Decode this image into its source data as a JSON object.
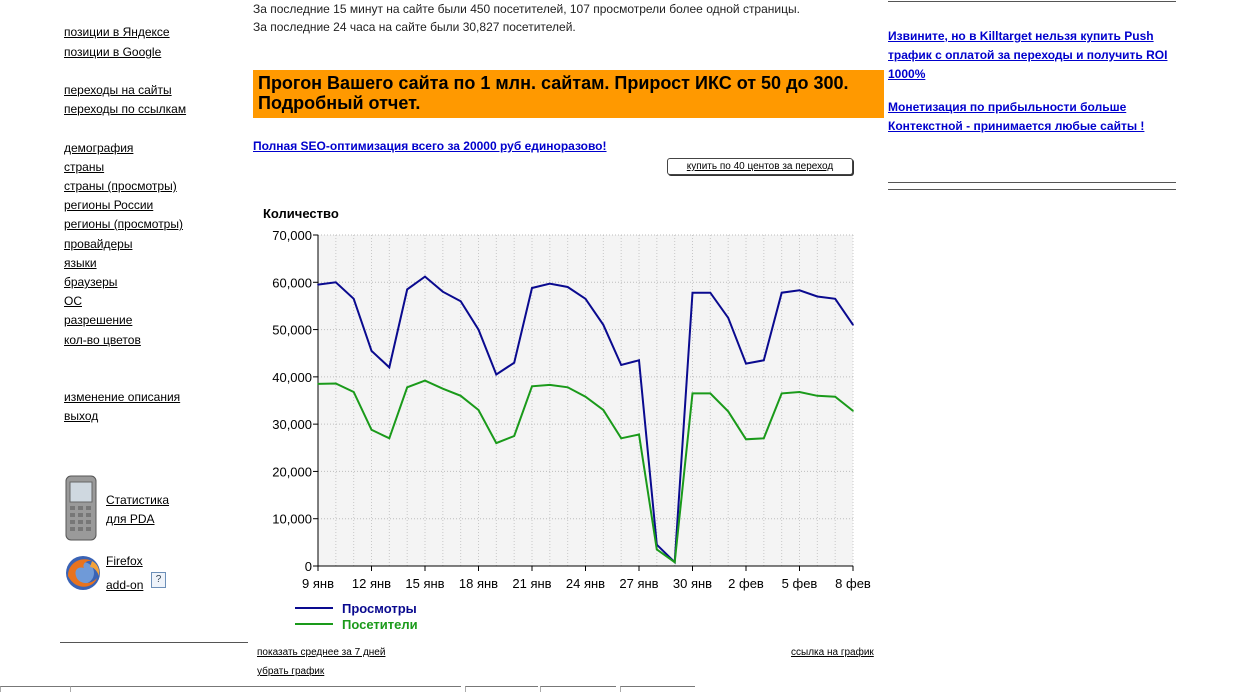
{
  "sidebar": {
    "links": [
      {
        "label": "позиции в Яндексе",
        "top": 25
      },
      {
        "label": "позиции в Google",
        "top": 45
      },
      {
        "label": "переходы на сайты",
        "top": 83
      },
      {
        "label": "переходы по ссылкам",
        "top": 102
      },
      {
        "label": "демография",
        "top": 141
      },
      {
        "label": "страны",
        "top": 160
      },
      {
        "label": "страны (просмотры)",
        "top": 179
      },
      {
        "label": "регионы России",
        "top": 198
      },
      {
        "label": "регионы (просмотры)",
        "top": 217
      },
      {
        "label": "провайдеры",
        "top": 237
      },
      {
        "label": "языки",
        "top": 256
      },
      {
        "label": "браузеры",
        "top": 275
      },
      {
        "label": "ОС",
        "top": 294
      },
      {
        "label": "разрешение",
        "top": 313
      },
      {
        "label": "кол-во цветов",
        "top": 333
      },
      {
        "label": "изменение описания",
        "top": 390
      },
      {
        "label": "выход",
        "top": 409
      }
    ],
    "pda": {
      "line1": "Статистика",
      "line2": "для PDA"
    },
    "firefox": {
      "line1": "Firefox",
      "line2": "add-on",
      "help": "?"
    }
  },
  "main": {
    "stat_15min": "За последние 15 минут на сайте были 450 посетителей, 107 просмотрели более одной страницы.",
    "stat_24h": "За последние 24 часа на сайте были 30,827 посетителей.",
    "banner": "Прогон Вашего сайта по 1 млн. сайтам. Прирост ИКС от 50 до 300. Подробный отчет.",
    "seo_link": "Полная SEO-оптимизация всего за 20000 руб единоразово!",
    "buy_button": "купить по 40 центов за переход",
    "show_avg": "показать среднее за 7 дней",
    "remove_chart": "убрать график",
    "chart_link": "ссылка на график"
  },
  "right": {
    "link1": "Извините, но в Killtarget нельзя купить Push трафик с оплатой за переходы и получить ROI 1000%",
    "link2": "Монетизация по прибыльности больше Контекстной - принимается любые сайты !"
  },
  "chart_data": {
    "type": "line",
    "ylabel": "Количество",
    "ylim": [
      0,
      70000
    ],
    "yticks": [
      "0",
      "10,000",
      "20,000",
      "30,000",
      "40,000",
      "50,000",
      "60,000",
      "70,000"
    ],
    "xticks": [
      "9 янв",
      "12 янв",
      "15 янв",
      "18 янв",
      "21 янв",
      "24 янв",
      "27 янв",
      "30 янв",
      "2 фев",
      "5 фев",
      "8 фев"
    ],
    "x_day_offsets": [
      0,
      3,
      6,
      9,
      12,
      15,
      18,
      21,
      24,
      27,
      30
    ],
    "grid": true,
    "legend_position": "bottom-left",
    "series": [
      {
        "name": "Просмотры",
        "color": "#0a0a8f",
        "values": [
          59500,
          60000,
          56500,
          45500,
          42000,
          58500,
          61200,
          58000,
          56000,
          50000,
          40500,
          43000,
          58800,
          59700,
          59000,
          56500,
          51000,
          42500,
          43500,
          4500,
          800,
          57800,
          57800,
          52500,
          42800,
          43500,
          57800,
          58300,
          57000,
          56500,
          51000
        ]
      },
      {
        "name": "Посетители",
        "color": "#1a9a1a",
        "values": [
          38500,
          38600,
          36800,
          28800,
          27000,
          37800,
          39200,
          37500,
          36000,
          33000,
          26000,
          27500,
          38000,
          38300,
          37800,
          35800,
          33000,
          27000,
          27800,
          3500,
          800,
          36500,
          36500,
          32700,
          26800,
          27000,
          36500,
          36800,
          36000,
          35800,
          32800
        ]
      }
    ]
  }
}
